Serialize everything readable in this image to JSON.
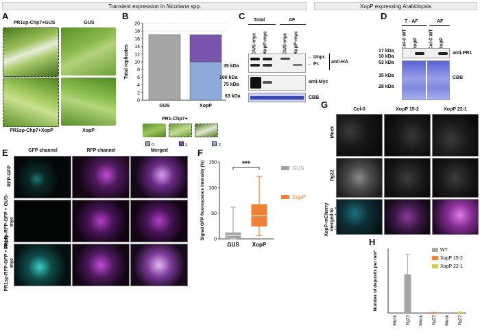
{
  "headers": {
    "transient_prefix": "Transient expression in ",
    "transient_species": "Nicotiana",
    "transient_suffix": " spp.",
    "arabidopsis": "XopP expressing Arabidopsis"
  },
  "panel_letters": [
    "A",
    "B",
    "C",
    "D",
    "E",
    "F",
    "G",
    "H"
  ],
  "panel_a": {
    "tl_label": "PR1sp-Chp7+GUS",
    "tr_label": "GUS",
    "bl_label": "PR1sp-Chp7+XopP",
    "br_label": "XopP"
  },
  "panel_b": {
    "ylabel": "Total replicates",
    "inset_label": "PR1-Chp7+",
    "legend": [
      "0",
      "1",
      "2"
    ]
  },
  "panel_c": {
    "group_total": "Total",
    "group_af": "AF",
    "lane_labels": [
      "GUS-myc",
      "XopP-myc",
      "GUS-myc",
      "XopP-myc"
    ],
    "unpr": "Unpr.",
    "pr": "Pr.",
    "anti_ha": "anti-HA",
    "anti_myc": "anti-Myc",
    "cbb": "CBB",
    "kda_35": "35 kDa",
    "kda_100": "100 kDa",
    "kda_75": "75 kDa",
    "kda_63": "63 kDa"
  },
  "panel_d": {
    "group_taf": "T - AF",
    "group_af": "AF",
    "lane_labels": [
      "Col-0 WT",
      "XopP",
      "Col-0 WT",
      "XopP"
    ],
    "kda_17": "17 kDa",
    "kda_10": "10 kDa",
    "kda_63": "63 kDa",
    "kda_35": "35 kDa",
    "kda_28": "28 kDa",
    "anti_pr1": "anti-PR1",
    "cbb": "CBB"
  },
  "panel_e": {
    "col_headers": [
      "GFP channel",
      "RFP channel",
      "Merged"
    ],
    "row_labels": [
      "RFP-GFP",
      "PR1sp-RFP-GFP + GUS-myc",
      "PR1sp-RFP-GFP + XopP-myc"
    ]
  },
  "panel_f": {
    "ylabel": "Signal GFP fluorescence intensity (%)",
    "significance": "***"
  },
  "panel_g": {
    "col_headers": [
      "Col-0",
      "XopP 15-2",
      "XopP 22-1"
    ],
    "row_labels": [
      "Mock",
      "flg22",
      "XopP-mCherry merged to chlorophyll"
    ]
  },
  "panel_h": {
    "ylabel": "Number of deposits per mm²"
  },
  "colors": {
    "gus": "#a6a6a6",
    "xopp": "#ee8236",
    "wt": "#a6a6a6",
    "xopp_15_2": "#ee8236",
    "xopp_22_1": "#d6c84a",
    "b_zero": "#a6a6a6",
    "b_one": "#7a55b0",
    "b_two": "#8eaadb"
  },
  "chart_data": [
    {
      "panel": "B",
      "type": "bar",
      "stacked": true,
      "categories": [
        "GUS",
        "XopP"
      ],
      "series": [
        {
          "name": "0",
          "values": [
            17,
            0
          ]
        },
        {
          "name": "1",
          "values": [
            0,
            7
          ]
        },
        {
          "name": "2",
          "values": [
            0,
            10
          ]
        }
      ],
      "ylabel": "Total replicates",
      "ylim": [
        0,
        20
      ],
      "yticks": [
        0,
        2,
        4,
        6,
        8,
        10,
        12,
        14,
        16,
        18,
        20
      ],
      "legend_position": "bottom"
    },
    {
      "panel": "F",
      "type": "box",
      "categories": [
        "GUS",
        "XopP"
      ],
      "series": [
        {
          "name": "GUS",
          "min": 0,
          "q1": 2,
          "median": 7,
          "q3": 12,
          "max": 62
        },
        {
          "name": "XopP",
          "min": 6,
          "q1": 25,
          "median": 45,
          "q3": 67,
          "max": 122
        }
      ],
      "ylabel": "Signal GFP fluorescence intensity (%)",
      "ylim": [
        0,
        150
      ],
      "yticks": [
        0,
        50,
        100,
        150
      ],
      "legend_position": "right"
    },
    {
      "panel": "H",
      "type": "bar",
      "categories": [
        "Mock",
        "flg22",
        "Mock",
        "flg22",
        "Mock",
        "flg22"
      ],
      "series": [
        {
          "name": "WT",
          "values": [
            0,
            180,
            null,
            null,
            null,
            null
          ],
          "errors": [
            0,
            92,
            null,
            null,
            null,
            null
          ]
        },
        {
          "name": "XopP 15-2",
          "values": [
            null,
            null,
            0,
            2,
            null,
            null
          ],
          "errors": [
            null,
            null,
            0,
            1,
            null,
            null
          ]
        },
        {
          "name": "XopP 22-1",
          "values": [
            null,
            null,
            null,
            null,
            0,
            4
          ],
          "errors": [
            null,
            null,
            null,
            null,
            0,
            2
          ]
        }
      ],
      "ylabel": "Number of deposits per mm²",
      "ylim": [
        0,
        300
      ],
      "legend_position": "top-right"
    }
  ]
}
